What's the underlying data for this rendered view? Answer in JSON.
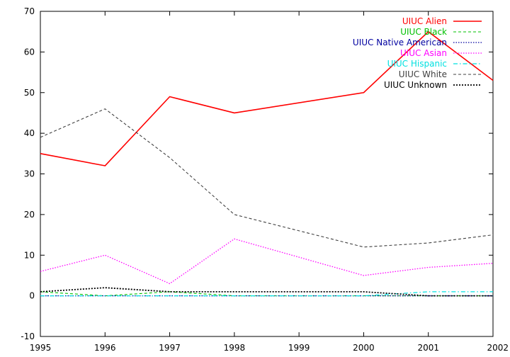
{
  "chart_data": {
    "type": "line",
    "title": "",
    "xlabel": "",
    "ylabel": "",
    "x": [
      1995,
      1996,
      1997,
      1998,
      2000,
      2001,
      2002
    ],
    "xlim": [
      1995,
      2002
    ],
    "ylim": [
      -10,
      70
    ],
    "xticks": [
      "1995",
      "1996",
      "1997",
      "1998",
      "1999",
      "2000",
      "2001",
      "2002"
    ],
    "yticks": [
      "-10",
      "0",
      "10",
      "20",
      "30",
      "40",
      "50",
      "60",
      "70"
    ],
    "grid": false,
    "legend_position": "top-right",
    "series": [
      {
        "name": "UIUC Alien",
        "color": "#ff0000",
        "dash": "solid",
        "values": [
          35,
          32,
          49,
          45,
          50,
          65,
          53
        ]
      },
      {
        "name": "UIUC Black",
        "color": "#00c000",
        "dash": "dashed",
        "values": [
          1,
          0,
          1,
          0,
          0,
          0,
          0
        ]
      },
      {
        "name": "UIUC Native American",
        "color": "#0000a0",
        "dash": "dotted",
        "values": [
          0,
          0,
          0,
          0,
          0,
          0,
          0
        ]
      },
      {
        "name": "UIUC Asian",
        "color": "#ff00ff",
        "dash": "dotted",
        "values": [
          6,
          10,
          3,
          14,
          5,
          7,
          8
        ]
      },
      {
        "name": "UIUC Hispanic",
        "color": "#00e0e0",
        "dash": "dashdot",
        "values": [
          0,
          0,
          0,
          0,
          0,
          1,
          1
        ]
      },
      {
        "name": "UIUC White",
        "color": "#404040",
        "dash": "dashed",
        "values": [
          39,
          46,
          34,
          20,
          12,
          13,
          15
        ]
      },
      {
        "name": "UIUC Unknown",
        "color": "#000000",
        "dash": "dotted-heavy",
        "values": [
          1,
          2,
          1,
          1,
          1,
          0,
          0
        ]
      }
    ]
  }
}
